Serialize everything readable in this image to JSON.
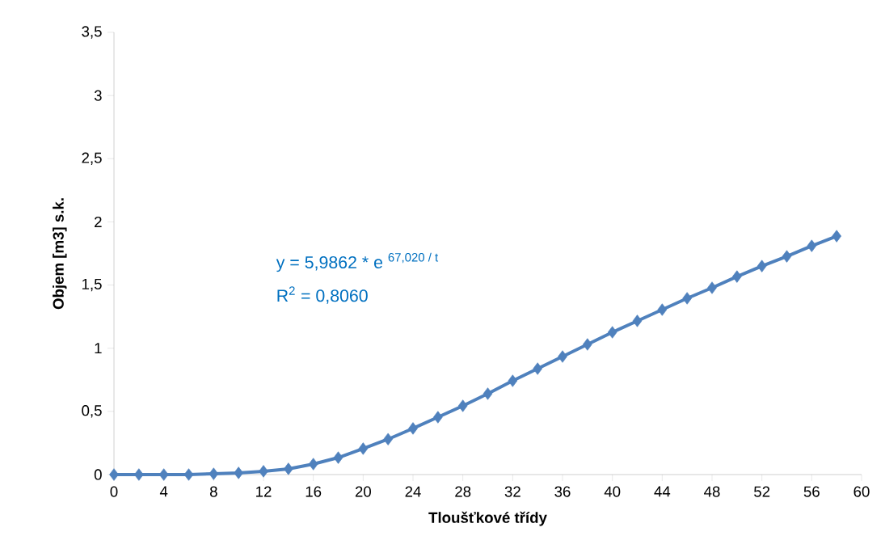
{
  "chart_data": {
    "type": "line",
    "xlabel": "Tloušťkové třídy",
    "ylabel": "Objem [m3] s.k.",
    "annotations": [
      "y = 5,9862 * e $^{67,020 / t}$",
      "R$^{2}$ = 0,8060"
    ],
    "x": [
      0,
      2,
      4,
      6,
      8,
      10,
      12,
      14,
      16,
      18,
      20,
      22,
      24,
      26,
      28,
      30,
      32,
      34,
      36,
      38,
      40,
      42,
      44,
      46,
      48,
      50,
      52,
      54,
      56,
      58
    ],
    "series": [
      {
        "color": "#4f81bd",
        "values": [
          0,
          0,
          0,
          0,
          0.006,
          0.013,
          0.026,
          0.045,
          0.083,
          0.134,
          0.205,
          0.28,
          0.365,
          0.454,
          0.544,
          0.64,
          0.742,
          0.838,
          0.934,
          1.03,
          1.126,
          1.216,
          1.305,
          1.395,
          1.478,
          1.567,
          1.65,
          1.727,
          1.81,
          1.887
        ]
      }
    ],
    "xlim": [
      0,
      60
    ],
    "xticks": [
      0,
      4,
      8,
      12,
      16,
      20,
      24,
      28,
      32,
      36,
      40,
      44,
      48,
      52,
      56,
      60
    ],
    "ylim": [
      0,
      3.5
    ],
    "yticks": [
      0,
      {
        "value": 0.5,
        "label": "0,5"
      },
      1,
      {
        "value": 1.5,
        "label": "1,5"
      },
      2,
      {
        "value": 2.5,
        "label": "2,5"
      },
      3,
      {
        "value": 3.5,
        "label": "3,5"
      }
    ],
    "marker": "diamond",
    "line_style": "solid"
  }
}
